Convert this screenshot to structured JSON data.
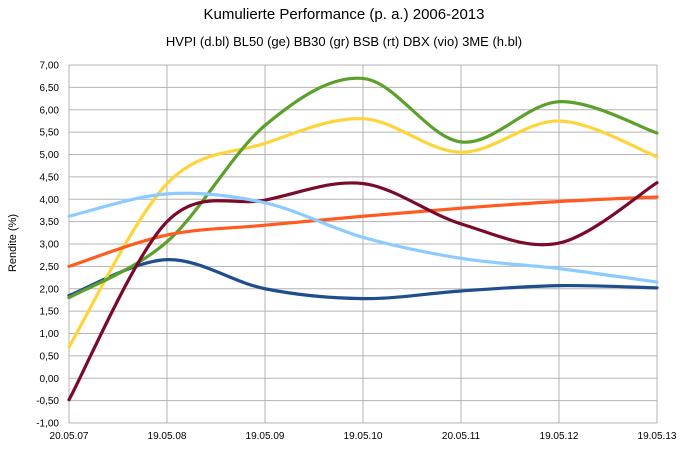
{
  "chart_data": {
    "type": "line",
    "title": "Kumulierte Performance (p. a.) 2006-2013",
    "subtitle": "HVPI (d.bl) BL50 (ge) BB30 (gr) BSB (rt) DBX (vio) 3ME (h.bl)",
    "xlabel": "",
    "ylabel": "Rendite (%)",
    "ylim": [
      -1.0,
      7.0
    ],
    "yticks": [
      "-1,00",
      "-0,50",
      "0,00",
      "0,50",
      "1,00",
      "1,50",
      "2,00",
      "2,50",
      "3,00",
      "3,50",
      "4,00",
      "4,50",
      "5,00",
      "5,50",
      "6,00",
      "6,50",
      "7,00"
    ],
    "categories": [
      "20.05.07",
      "19.05.08",
      "19.05.09",
      "19.05.10",
      "20.05.11",
      "19.05.12",
      "19.05.13"
    ],
    "grid": true,
    "smooth": true,
    "series": [
      {
        "name": "HVPI",
        "color": "#1f4e8c",
        "values": [
          1.85,
          2.65,
          2.0,
          1.78,
          1.95,
          2.07,
          2.02
        ]
      },
      {
        "name": "BL50",
        "color": "#ffd43b",
        "values": [
          0.7,
          4.35,
          5.25,
          5.8,
          5.05,
          5.75,
          4.95
        ]
      },
      {
        "name": "BB30",
        "color": "#5ba02a",
        "values": [
          1.8,
          3.05,
          5.65,
          6.7,
          5.28,
          6.18,
          5.48
        ]
      },
      {
        "name": "BSB",
        "color": "#ff5a1f",
        "values": [
          2.5,
          3.2,
          3.42,
          3.62,
          3.8,
          3.95,
          4.05
        ]
      },
      {
        "name": "DBX",
        "color": "#7b0a2a",
        "values": [
          -0.48,
          3.5,
          3.98,
          4.35,
          3.45,
          3.02,
          4.37
        ]
      },
      {
        "name": "3ME",
        "color": "#8ccbff",
        "values": [
          3.62,
          4.12,
          3.92,
          3.15,
          2.68,
          2.45,
          2.15
        ]
      }
    ]
  }
}
